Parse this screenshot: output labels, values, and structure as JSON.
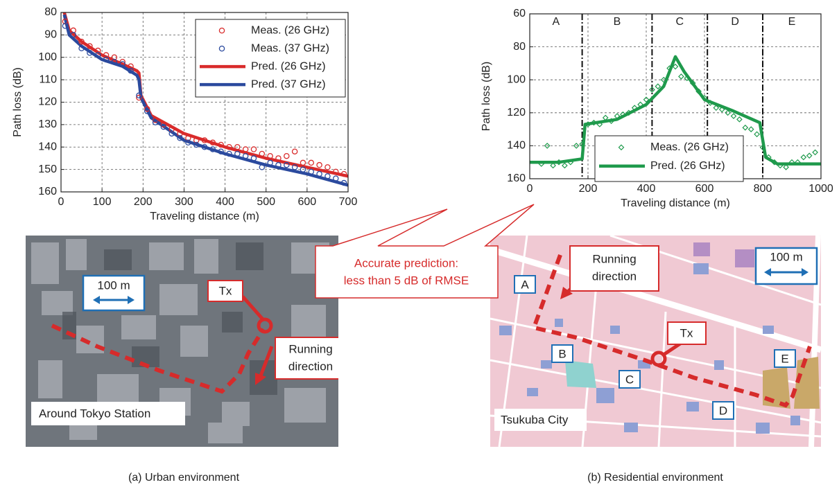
{
  "chart_data": [
    {
      "type": "line",
      "ylabel": "Path loss (dB)",
      "xlabel": "Traveling distance (m)",
      "xlim": [
        0,
        700
      ],
      "xticks": [
        0,
        100,
        200,
        300,
        400,
        500,
        600,
        700
      ],
      "ylim": [
        80,
        160
      ],
      "yticks": [
        80,
        90,
        100,
        110,
        120,
        130,
        140,
        150,
        160
      ],
      "y_inverted": true,
      "grid": true,
      "series": [
        {
          "name": "Meas. (26 GHz)",
          "color": "#d92b2b",
          "mode": "markers",
          "marker": "circle",
          "x": [
            10,
            30,
            50,
            70,
            90,
            110,
            130,
            150,
            170,
            190,
            210,
            230,
            250,
            270,
            290,
            310,
            330,
            350,
            370,
            390,
            410,
            430,
            450,
            470,
            490,
            510,
            530,
            550,
            570,
            590,
            610,
            630,
            650,
            670,
            690
          ],
          "values": [
            84,
            88,
            93,
            95,
            97,
            99,
            100,
            102,
            104,
            118,
            123,
            128,
            130,
            132,
            134,
            136,
            137,
            137,
            138,
            139,
            140,
            140,
            141,
            141,
            143,
            144,
            145,
            144,
            142,
            147,
            147,
            148,
            149,
            151,
            152
          ]
        },
        {
          "name": "Meas. (37 GHz)",
          "color": "#2b4a9e",
          "mode": "markers",
          "marker": "circle",
          "x": [
            10,
            30,
            50,
            70,
            90,
            110,
            130,
            150,
            170,
            190,
            210,
            230,
            250,
            270,
            290,
            310,
            330,
            350,
            370,
            390,
            410,
            430,
            450,
            470,
            490,
            510,
            530,
            550,
            570,
            590,
            610,
            630,
            650,
            670,
            690
          ],
          "values": [
            86,
            90,
            96,
            98,
            99,
            101,
            102,
            103,
            106,
            117,
            124,
            129,
            131,
            134,
            136,
            138,
            139,
            140,
            141,
            142,
            143,
            143,
            144,
            145,
            149,
            147,
            148,
            148,
            149,
            150,
            151,
            152,
            153,
            154,
            156
          ]
        },
        {
          "name": "Pred. (26 GHz)",
          "color": "#d92b2b",
          "mode": "line",
          "x": [
            8,
            20,
            50,
            100,
            150,
            185,
            190,
            195,
            220,
            300,
            400,
            500,
            600,
            700
          ],
          "values": [
            80,
            88,
            93,
            99,
            103,
            106,
            107,
            117,
            126,
            134,
            140,
            145,
            149,
            153
          ]
        },
        {
          "name": "Pred. (37 GHz)",
          "color": "#2b4a9e",
          "mode": "line",
          "x": [
            8,
            20,
            50,
            100,
            150,
            185,
            190,
            195,
            220,
            300,
            400,
            500,
            600,
            700
          ],
          "values": [
            81,
            90,
            95,
            101,
            104,
            108,
            110,
            118,
            127,
            137,
            143,
            148,
            152,
            157
          ]
        }
      ]
    },
    {
      "type": "line",
      "ylabel": "Path loss (dB)",
      "xlabel": "Traveling distance (m)",
      "xlim": [
        0,
        1000
      ],
      "xticks": [
        0,
        200,
        400,
        600,
        800,
        1000
      ],
      "ylim": [
        60,
        160
      ],
      "yticks": [
        60,
        80,
        100,
        120,
        140,
        160
      ],
      "y_inverted": true,
      "grid": true,
      "zones": {
        "labels": [
          "A",
          "B",
          "C",
          "D",
          "E"
        ],
        "boundaries": [
          180,
          420,
          610,
          800
        ]
      },
      "series": [
        {
          "name": "Meas. (26 GHz)",
          "color": "#1f9a4c",
          "mode": "markers",
          "marker": "diamond",
          "x": [
            40,
            60,
            80,
            100,
            120,
            140,
            160,
            180,
            200,
            220,
            240,
            260,
            280,
            300,
            320,
            340,
            360,
            380,
            400,
            420,
            440,
            460,
            480,
            500,
            520,
            540,
            560,
            580,
            600,
            620,
            640,
            660,
            680,
            700,
            720,
            740,
            760,
            780,
            800,
            820,
            840,
            860,
            880,
            900,
            920,
            940,
            960,
            980
          ],
          "values": [
            151,
            140,
            152,
            150,
            152,
            150,
            140,
            139,
            127,
            126,
            127,
            123,
            125,
            122,
            121,
            120,
            117,
            115,
            112,
            106,
            104,
            100,
            93,
            92,
            98,
            99,
            102,
            107,
            111,
            114,
            117,
            118,
            120,
            122,
            124,
            129,
            130,
            133,
            141,
            147,
            150,
            152,
            153,
            150,
            150,
            147,
            146,
            144
          ]
        },
        {
          "name": "Pred. (26 GHz)",
          "color": "#1f9a4c",
          "mode": "line",
          "x": [
            0,
            100,
            180,
            190,
            300,
            400,
            460,
            500,
            530,
            600,
            700,
            790,
            810,
            850,
            1000
          ],
          "values": [
            150,
            150,
            148,
            127,
            124,
            115,
            104,
            86,
            95,
            112,
            119,
            126,
            147,
            151,
            151
          ]
        }
      ]
    }
  ],
  "callout": [
    "Accurate prediction:",
    "less than 5 dB of RMSE"
  ],
  "urban_map": {
    "scale": "100 m",
    "tx": "Tx",
    "direction": [
      "Running",
      "direction"
    ],
    "place": "Around Tokyo Station"
  },
  "residential_map": {
    "scale": "100 m",
    "tx": "Tx",
    "direction": [
      "Running",
      "direction"
    ],
    "zones": [
      "A",
      "B",
      "C",
      "D",
      "E"
    ],
    "place": "Tsukuba City"
  },
  "captions": [
    "(a) Urban environment",
    "(b) Residential environment"
  ]
}
